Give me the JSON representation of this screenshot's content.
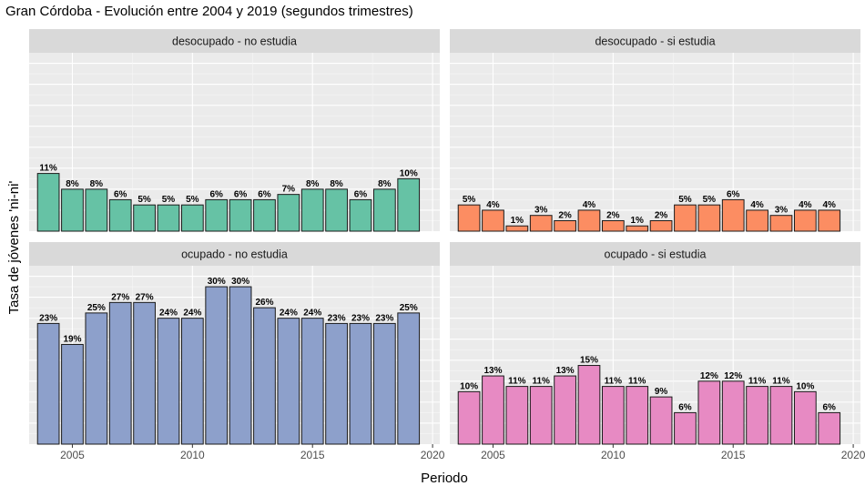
{
  "chart_data": {
    "type": "bar",
    "title": "Gran Córdoba - Evolución entre 2004 y 2019 (segundos trimestres)",
    "xlabel": "Periodo",
    "ylabel": "Tasa de jóvenes 'ni-ni'",
    "x": [
      2004,
      2005,
      2006,
      2007,
      2008,
      2009,
      2010,
      2011,
      2012,
      2013,
      2014,
      2015,
      2016,
      2017,
      2018,
      2019
    ],
    "x_ticks": [
      2005,
      2010,
      2015,
      2020
    ],
    "xlim": [
      2003.2,
      2020.3
    ],
    "panels": [
      {
        "name": "desocupado - no estudia",
        "color": "#66c2a5",
        "values": [
          0.11,
          0.08,
          0.08,
          0.06,
          0.05,
          0.05,
          0.05,
          0.06,
          0.06,
          0.06,
          0.07,
          0.08,
          0.08,
          0.06,
          0.08,
          0.1
        ],
        "labels": [
          "11%",
          "8%",
          "8%",
          "6%",
          "5%",
          "5%",
          "5%",
          "6%",
          "6%",
          "6%",
          "7%",
          "8%",
          "8%",
          "6%",
          "8%",
          "10%"
        ]
      },
      {
        "name": "desocupado - si estudia",
        "color": "#fc8d62",
        "values": [
          0.05,
          0.04,
          0.01,
          0.03,
          0.02,
          0.04,
          0.02,
          0.01,
          0.02,
          0.05,
          0.05,
          0.06,
          0.04,
          0.03,
          0.04,
          0.04
        ],
        "labels": [
          "5%",
          "4%",
          "1%",
          "3%",
          "2%",
          "4%",
          "2%",
          "1%",
          "2%",
          "5%",
          "5%",
          "6%",
          "4%",
          "3%",
          "4%",
          "4%"
        ]
      },
      {
        "name": "ocupado - no estudia",
        "color": "#8da0cb",
        "values": [
          0.23,
          0.19,
          0.25,
          0.27,
          0.27,
          0.24,
          0.24,
          0.3,
          0.3,
          0.26,
          0.24,
          0.24,
          0.23,
          0.23,
          0.23,
          0.25
        ],
        "labels": [
          "23%",
          "19%",
          "25%",
          "27%",
          "27%",
          "24%",
          "24%",
          "30%",
          "30%",
          "26%",
          "24%",
          "24%",
          "23%",
          "23%",
          "23%",
          "25%"
        ]
      },
      {
        "name": "ocupado - si estudia",
        "color": "#e78ac3",
        "values": [
          0.1,
          0.13,
          0.11,
          0.11,
          0.13,
          0.15,
          0.11,
          0.11,
          0.09,
          0.06,
          0.12,
          0.12,
          0.11,
          0.11,
          0.1,
          0.06
        ],
        "labels": [
          "10%",
          "13%",
          "11%",
          "11%",
          "13%",
          "15%",
          "11%",
          "11%",
          "9%",
          "6%",
          "12%",
          "12%",
          "11%",
          "11%",
          "10%",
          "6%"
        ]
      }
    ]
  }
}
